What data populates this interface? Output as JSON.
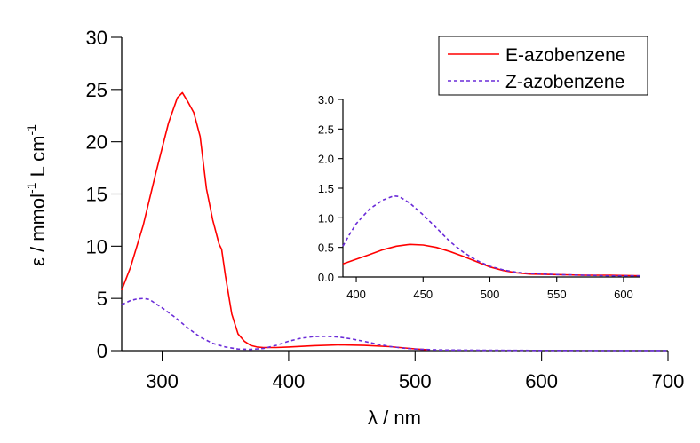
{
  "chart_data": [
    {
      "type": "line",
      "xlabel": "λ / nm",
      "ylabel_parts": [
        "ε / mmol",
        "-1",
        " L cm",
        "-1"
      ],
      "xlim": [
        268,
        700
      ],
      "ylim": [
        0,
        30
      ],
      "xticks": [
        300,
        400,
        500,
        600,
        700
      ],
      "yticks": [
        0,
        5,
        10,
        15,
        20,
        25,
        30
      ],
      "legend_position": "top-right",
      "series": [
        {
          "name": "E-azobenzene",
          "color": "#ff0000",
          "dash": "solid",
          "x": [
            268,
            275,
            285,
            295,
            305,
            312,
            316,
            320,
            325,
            330,
            335,
            340,
            345,
            347,
            350,
            355,
            360,
            365,
            370,
            375,
            380,
            390,
            400,
            420,
            440,
            460,
            480,
            500,
            510
          ],
          "y": [
            5.8,
            8.0,
            12.0,
            17.0,
            21.8,
            24.2,
            24.7,
            23.9,
            22.8,
            20.5,
            15.5,
            12.5,
            10.2,
            9.7,
            7.2,
            3.5,
            1.6,
            0.9,
            0.5,
            0.35,
            0.3,
            0.3,
            0.35,
            0.48,
            0.55,
            0.5,
            0.38,
            0.17,
            0.08
          ]
        },
        {
          "name": "Z-azobenzene",
          "color": "#6a2bd8",
          "dash": "dashed",
          "x": [
            268,
            275,
            280,
            285,
            290,
            295,
            300,
            310,
            320,
            330,
            340,
            350,
            360,
            370,
            380,
            390,
            400,
            410,
            420,
            430,
            440,
            450,
            460,
            470,
            480,
            490,
            500,
            520,
            550,
            600,
            650,
            700
          ],
          "y": [
            4.4,
            4.8,
            4.95,
            5.0,
            4.9,
            4.5,
            4.1,
            3.2,
            2.2,
            1.3,
            0.7,
            0.35,
            0.15,
            0.12,
            0.2,
            0.5,
            0.9,
            1.2,
            1.35,
            1.38,
            1.3,
            1.12,
            0.88,
            0.62,
            0.4,
            0.25,
            0.15,
            0.07,
            0.04,
            0.02,
            0.01,
            0.01
          ]
        }
      ]
    },
    {
      "type": "line",
      "xlim": [
        390,
        612
      ],
      "ylim": [
        0,
        3.0
      ],
      "xticks": [
        400,
        450,
        500,
        550,
        600
      ],
      "yticks": [
        0.0,
        0.5,
        1.0,
        1.5,
        2.0,
        2.5,
        3.0
      ],
      "series": [
        {
          "name": "E-azobenzene",
          "color": "#ff0000",
          "dash": "solid",
          "x": [
            390,
            400,
            410,
            420,
            430,
            440,
            450,
            460,
            470,
            480,
            490,
            500,
            510,
            520,
            530,
            550,
            570,
            590,
            612
          ],
          "y": [
            0.22,
            0.3,
            0.38,
            0.46,
            0.52,
            0.55,
            0.54,
            0.5,
            0.43,
            0.35,
            0.26,
            0.17,
            0.11,
            0.07,
            0.05,
            0.04,
            0.03,
            0.03,
            0.02
          ]
        },
        {
          "name": "Z-azobenzene",
          "color": "#6a2bd8",
          "dash": "dashed",
          "x": [
            390,
            395,
            400,
            410,
            420,
            428,
            432,
            440,
            450,
            460,
            470,
            480,
            490,
            500,
            510,
            520,
            530,
            540,
            550,
            570,
            590,
            612
          ],
          "y": [
            0.52,
            0.72,
            0.9,
            1.15,
            1.3,
            1.37,
            1.36,
            1.25,
            1.05,
            0.83,
            0.6,
            0.42,
            0.28,
            0.18,
            0.12,
            0.08,
            0.06,
            0.05,
            0.04,
            0.03,
            0.02,
            0.02
          ]
        }
      ]
    }
  ]
}
